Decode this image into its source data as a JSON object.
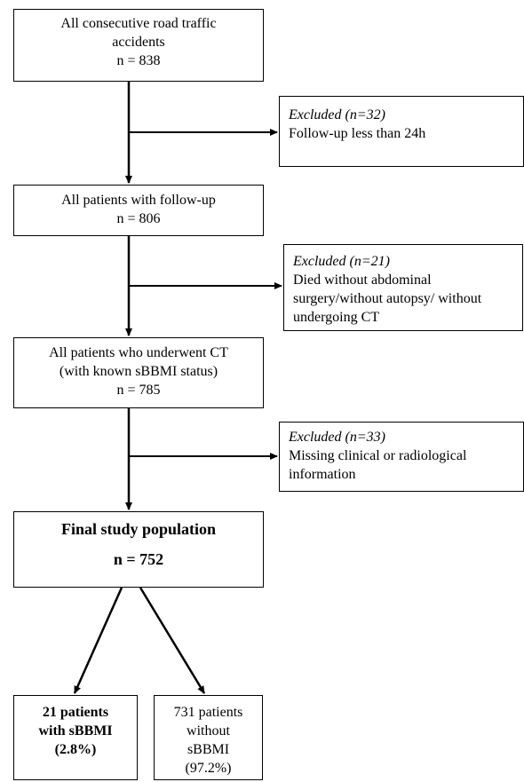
{
  "flowchart": {
    "all_accidents": {
      "line1": "All consecutive road traffic",
      "line2": "accidents",
      "count": "n = 838"
    },
    "excluded_1": {
      "label": "Excluded (n=32)",
      "reason": "Follow-up less than 24h"
    },
    "followup": {
      "line1": "All patients with follow-up",
      "count": "n = 806"
    },
    "excluded_2": {
      "label": "Excluded (n=21)",
      "line1": "Died without abdominal",
      "line2": "surgery/without autopsy/ without",
      "line3": "undergoing CT"
    },
    "ct": {
      "line1": "All patients who underwent CT",
      "line2": "(with known sBBMI status)",
      "count": "n = 785"
    },
    "excluded_3": {
      "label": "Excluded (n=33)",
      "line1": "Missing clinical or radiological",
      "line2": "information"
    },
    "final": {
      "title": "Final study population",
      "count": "n = 752"
    },
    "with_sbbmi": {
      "line1": "21 patients",
      "line2": "with sBBMI",
      "line3": "(2.8%)"
    },
    "without_sbbmi": {
      "line1": "731 patients",
      "line2": "without",
      "line3": "sBBMI",
      "line4": "(97.2%)"
    }
  }
}
